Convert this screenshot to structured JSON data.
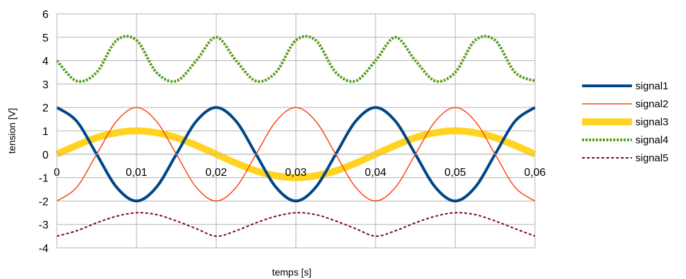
{
  "chart_data": {
    "type": "line",
    "xlabel": "temps [s]",
    "ylabel": "tension [V]",
    "xlim": [
      0,
      0.06
    ],
    "ylim": [
      -4,
      6
    ],
    "x_ticks": [
      "0",
      "0,01",
      "0,02",
      "0,03",
      "0,04",
      "0,05",
      "0,06"
    ],
    "y_ticks": [
      "-4",
      "-3",
      "-2",
      "-1",
      "0",
      "1",
      "2",
      "3",
      "4",
      "5",
      "6"
    ],
    "grid": true,
    "legend_position": "right",
    "x": [
      0,
      0.0025,
      0.005,
      0.0075,
      0.01,
      0.0125,
      0.015,
      0.0175,
      0.02,
      0.0225,
      0.025,
      0.0275,
      0.03,
      0.0325,
      0.035,
      0.0375,
      0.04,
      0.0425,
      0.045,
      0.0475,
      0.05,
      0.0525,
      0.055,
      0.0575,
      0.06
    ],
    "series": [
      {
        "name": "signal1",
        "color": "#004586",
        "style": "solid",
        "width": 4,
        "values": [
          2,
          1.41,
          0,
          -1.41,
          -2,
          -1.41,
          0,
          1.41,
          2,
          1.41,
          0,
          -1.41,
          -2,
          -1.41,
          0,
          1.41,
          2,
          1.41,
          0,
          -1.41,
          -2,
          -1.41,
          0,
          1.41,
          2
        ]
      },
      {
        "name": "signal2",
        "color": "#ff420e",
        "style": "solid",
        "width": 1.5,
        "values": [
          -2,
          -1.41,
          0,
          1.41,
          2,
          1.41,
          0,
          -1.41,
          -2,
          -1.41,
          0,
          1.41,
          2,
          1.41,
          0,
          -1.41,
          -2,
          -1.41,
          0,
          1.41,
          2,
          1.41,
          0,
          -1.41,
          -2
        ]
      },
      {
        "name": "signal3",
        "color": "#ffd320",
        "style": "solid",
        "width": 10,
        "values": [
          0,
          0.38,
          0.71,
          0.92,
          1,
          0.92,
          0.71,
          0.38,
          0,
          -0.38,
          -0.71,
          -0.92,
          -1,
          -0.92,
          -0.71,
          -0.38,
          0,
          0.38,
          0.71,
          0.92,
          1,
          0.92,
          0.71,
          0.38,
          0
        ]
      },
      {
        "name": "signal4",
        "color": "#579d1c",
        "style": "dotted",
        "width": 4,
        "values": [
          4,
          3.13,
          3.5,
          4.87,
          4.87,
          3.5,
          3.13,
          4,
          5,
          4,
          3.13,
          3.5,
          4.87,
          4.87,
          3.5,
          3.13,
          4,
          5,
          4,
          3.13,
          3.5,
          4.87,
          4.87,
          3.5,
          3.13
        ]
      },
      {
        "name": "signal5",
        "color": "#7e0021",
        "style": "dashed",
        "width": 2,
        "values": [
          -3.5,
          -3.27,
          -2.93,
          -2.65,
          -2.5,
          -2.58,
          -2.85,
          -3.18,
          -3.5,
          -3.27,
          -2.93,
          -2.65,
          -2.5,
          -2.58,
          -2.85,
          -3.18,
          -3.5,
          -3.27,
          -2.93,
          -2.65,
          -2.5,
          -2.58,
          -2.85,
          -3.18,
          -3.5
        ]
      }
    ]
  }
}
